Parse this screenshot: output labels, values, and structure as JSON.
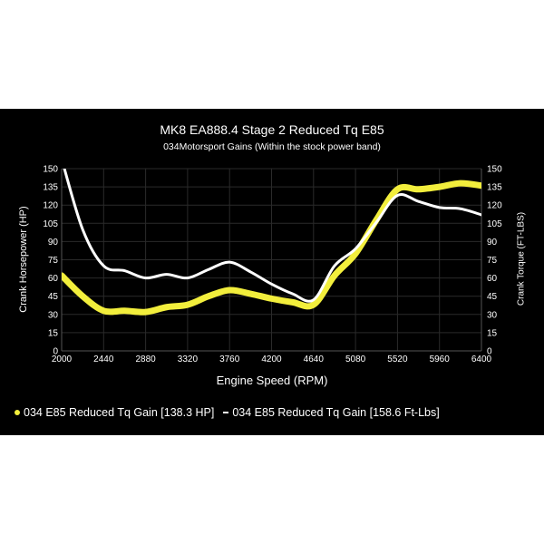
{
  "chart_data": {
    "type": "line",
    "title": "MK8 EA888.4 Stage 2 Reduced Tq E85",
    "subtitle": "034Motorsport Gains (Within the stock power band)",
    "xlabel": "Engine Speed (RPM)",
    "ylabel": "Crank Horsepower (HP)",
    "y2label": "Crank Torque (FT-LBS)",
    "xlim": [
      2000,
      6400
    ],
    "ylim": [
      0,
      150
    ],
    "y2lim": [
      0,
      150
    ],
    "grid": true,
    "legend_position": "bottom",
    "x_ticks": [
      2000,
      2440,
      2880,
      3320,
      3760,
      4200,
      4640,
      5080,
      5520,
      5960,
      6400
    ],
    "y_ticks": [
      0,
      15,
      30,
      45,
      60,
      75,
      90,
      105,
      120,
      135,
      150
    ],
    "y2_ticks": [
      0,
      15,
      30,
      45,
      60,
      75,
      90,
      105,
      120,
      135,
      150
    ],
    "x": [
      2000,
      2220,
      2440,
      2660,
      2880,
      3100,
      3320,
      3540,
      3760,
      3980,
      4200,
      4420,
      4640,
      4860,
      5080,
      5300,
      5520,
      5740,
      5960,
      6180,
      6400
    ],
    "series": [
      {
        "name": "034 E85 Reduced Tq Gain [138.3 HP]",
        "axis": "left",
        "color": "#f2ee3c",
        "values": [
          62,
          45,
          33,
          33,
          32,
          36,
          38,
          45,
          50,
          47,
          43,
          40,
          38,
          62,
          80,
          108,
          133,
          133,
          135,
          138,
          136
        ]
      },
      {
        "name": "034 E85 Reduced Tq Gain [158.6 Ft-Lbs]",
        "axis": "right",
        "color": "#ffffff",
        "values": [
          158,
          100,
          70,
          66,
          60,
          63,
          60,
          67,
          73,
          65,
          55,
          47,
          42,
          70,
          84,
          106,
          128,
          123,
          118,
          117,
          112
        ]
      }
    ]
  },
  "legend": {
    "hp_label": "034 E85 Reduced Tq Gain [138.3 HP]",
    "tq_label": "034 E85 Reduced Tq Gain [158.6 Ft-Lbs]"
  }
}
